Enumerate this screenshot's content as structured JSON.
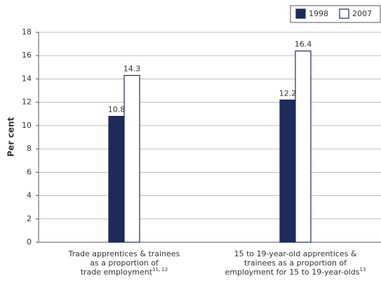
{
  "chart_data": {
    "type": "bar",
    "y_label": "Per cent",
    "categories": [
      [
        "Trade apprentices & trainees",
        "as a proportion of",
        "trade employment"
      ],
      [
        "15 to 19-year-old apprentices &",
        "trainees as a proportion of",
        "employment for 15 to 19-year-olds"
      ]
    ],
    "category_notes": [
      "11, 12",
      "13"
    ],
    "series": [
      {
        "name": "1998",
        "color": "#1c2b5a",
        "values": [
          10.8,
          12.2
        ]
      },
      {
        "name": "2007",
        "color": "#ffffff",
        "values": [
          14.3,
          16.4
        ]
      }
    ],
    "ylim": [
      0,
      18
    ],
    "yticks": [
      0,
      2,
      4,
      6,
      8,
      10,
      12,
      14,
      16,
      18
    ],
    "grid": true,
    "legend": "top-right"
  }
}
